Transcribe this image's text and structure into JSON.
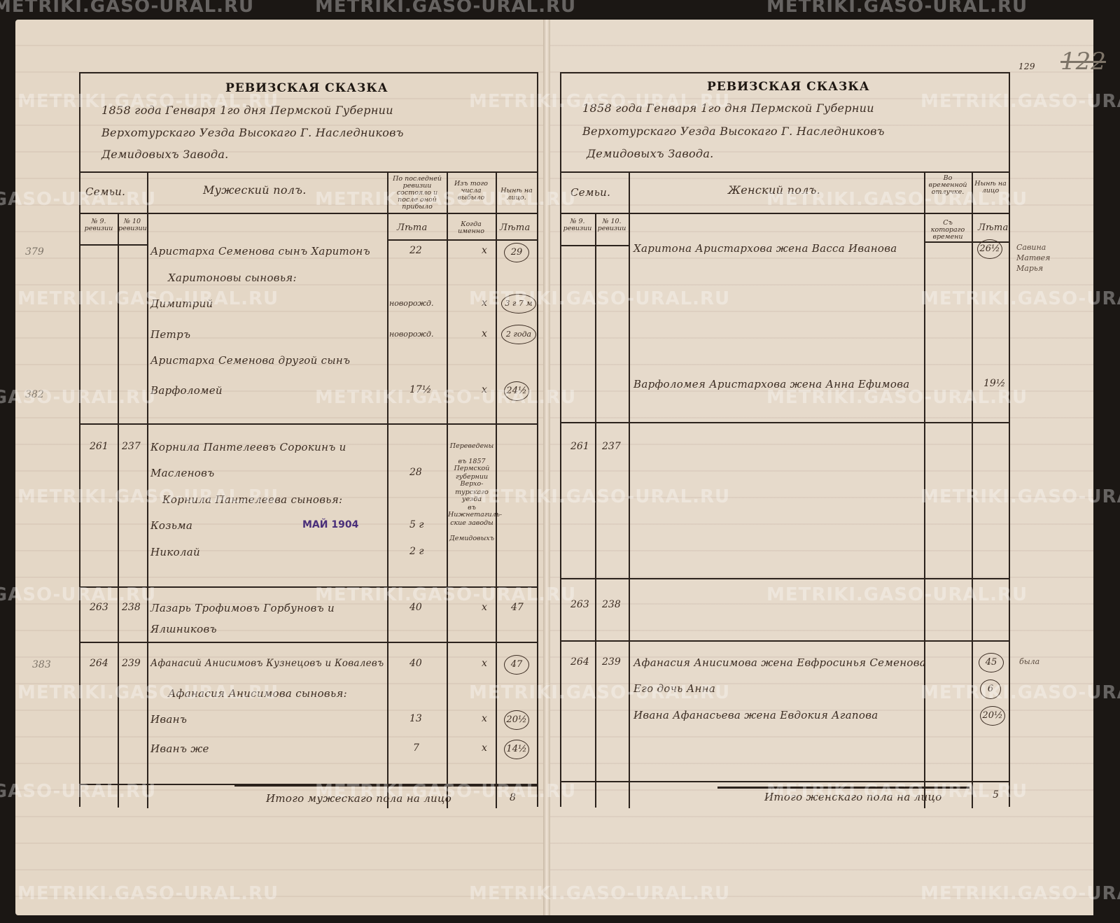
{
  "watermark": "METRIKI.GASO-URAL.RU",
  "page_numbers": {
    "ink": "129",
    "pencil": "122"
  },
  "stamp": "МАЙ 1904",
  "left_page": {
    "title": "РЕВИЗСКАЯ СКАЗКА",
    "header_lines": [
      "1858 года Генваря 1го дня Пермской Губернии",
      "Верхотурскаго Уезда Высокаго Г. Наследниковъ",
      "Демидовыхъ Завода."
    ],
    "columns": {
      "families": "Семьи.",
      "sex": "Мужеский полъ.",
      "last_revision": "По последней ревизии состояло и после оной прибыло",
      "departed": "Изъ того числа выбыло",
      "present": "Нынѣ на лицо.",
      "rev9": "№ 9. ревизии",
      "rev10": "№ 10 ревизии",
      "years1": "Лѣта",
      "when": "Когда именно",
      "years2": "Лѣта"
    },
    "margin_numbers": [
      "379",
      "382",
      "383"
    ],
    "entries": [
      {
        "name": "Аристарха Семенова сынъ Харитонъ",
        "age": "22",
        "mark": "х",
        "now": "29"
      },
      {
        "name": "Харитоновы сыновья:"
      },
      {
        "name": "Димитрий",
        "age": "новорожд.",
        "mark": "х",
        "now": "3 г 7 м"
      },
      {
        "name": "Петръ",
        "age": "новорожд.",
        "mark": "х",
        "now": "2 года"
      },
      {
        "name": "Аристарха Семенова другой сынъ"
      },
      {
        "name": "Варфоломей",
        "age": "17½",
        "mark": "х",
        "now": "24½"
      },
      {
        "rev9": "261",
        "rev10": "237",
        "name": "Корнила Пантелеевъ Сорокинъ и"
      },
      {
        "name": "Масленовъ",
        "age": "28"
      },
      {
        "name": "Корнила Пантелеева сыновья:"
      },
      {
        "name": "Козьма",
        "age": "5 г"
      },
      {
        "name": "Николай",
        "age": "2 г"
      },
      {
        "rev9": "263",
        "rev10": "238",
        "name": "Лазарь Трофимовъ Горбуновъ и",
        "age": "40",
        "mark": "х",
        "now": "47"
      },
      {
        "name": "Ялшниковъ"
      },
      {
        "rev9": "264",
        "rev10": "239",
        "name": "Афанасий Анисимовъ Кузнецовъ и Ковалевъ",
        "age": "40",
        "mark": "х",
        "now": "47"
      },
      {
        "name": "Афанасия Анисимова сыновья:"
      },
      {
        "name": "Иванъ",
        "age": "13",
        "mark": "х",
        "now": "20½"
      },
      {
        "name": "Иванъ же",
        "age": "7",
        "mark": "х",
        "now": "14½"
      }
    ],
    "departure_note": [
      "Переведены",
      "въ 1857 Пермской",
      "губернии Верхо-",
      "турскаго уезда",
      "въ Нижнетагиль-",
      "ские заводы",
      "Демидовыхъ"
    ],
    "total_label": "Итого мужескаго пола на лицо",
    "total_value": "8"
  },
  "right_page": {
    "title": "РЕВИЗСКАЯ СКАЗКА",
    "header_lines": [
      "1858 года Генваря 1го дня Пермской Губернии",
      "Верхотурскаго Уезда Высокаго Г. Наследниковъ",
      "Демидовыхъ Завода."
    ],
    "columns": {
      "families": "Семьи.",
      "sex": "Женский полъ.",
      "absence": "Во временной отлучке.",
      "present": "Нынѣ на лицо",
      "rev9": "№ 9. ревизии",
      "rev10": "№ 10. ревизии",
      "since": "Съ котораго времени",
      "years": "Лѣта"
    },
    "entries": [
      {
        "name": "Харитона Аристархова жена Васса Иванова",
        "now": "26½"
      },
      {
        "name": "Варфоломея Аристархова жена Анна Ефимова",
        "now": "19½"
      },
      {
        "rev9": "261",
        "rev10": "237"
      },
      {
        "rev9": "263",
        "rev10": "238"
      },
      {
        "rev9": "264",
        "rev10": "239",
        "name": "Афанасия Анисимова жена Евфросинья Семенова",
        "now": "45"
      },
      {
        "name": "Его дочь Анна",
        "now": "6"
      },
      {
        "name": "Ивана Афанасьева жена Евдокия Агапова",
        "now": "20½"
      }
    ],
    "margin_notes": [
      "Савина",
      "Матвея",
      "Марья",
      "была"
    ],
    "total_label": "Итого женскаго пола на лицо",
    "total_value": "5"
  }
}
